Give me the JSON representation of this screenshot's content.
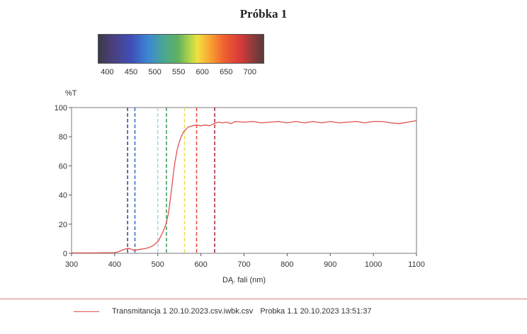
{
  "title": "Próbka 1",
  "spectrum_scale": {
    "ticks": [
      "400",
      "450",
      "500",
      "550",
      "600",
      "650",
      "700"
    ],
    "range": [
      380,
      730
    ]
  },
  "legend": {
    "entry": "Transmitancja 1 20.10.2023.csv.iwbk.csv",
    "sample": "Probka 1.1 20.10.2023 13:51:37",
    "color": "#e05050"
  },
  "chart_data": {
    "type": "line",
    "title": "",
    "xlabel": "DĄ. fali (nm)",
    "ylabel": "%T",
    "xlim": [
      300,
      1100
    ],
    "ylim": [
      0,
      100
    ],
    "x_ticks": [
      "300",
      "400",
      "500",
      "600",
      "700",
      "800",
      "900",
      "1000",
      "1100"
    ],
    "y_ticks": [
      "0",
      "20",
      "40",
      "60",
      "80",
      "100"
    ],
    "grid": false,
    "series": [
      {
        "name": "Transmitancja 1 20.10.2023.csv.iwbk.csv",
        "color": "#e05050",
        "x": [
          300,
          350,
          400,
          410,
          420,
          428,
          435,
          440,
          445,
          450,
          460,
          470,
          480,
          490,
          500,
          505,
          510,
          515,
          520,
          525,
          530,
          535,
          540,
          545,
          550,
          555,
          560,
          570,
          580,
          590,
          600,
          610,
          620,
          630,
          640,
          650,
          660,
          670,
          680,
          700,
          720,
          740,
          760,
          780,
          800,
          820,
          840,
          860,
          880,
          900,
          920,
          940,
          960,
          980,
          1000,
          1020,
          1040,
          1060,
          1080,
          1100
        ],
        "y": [
          0.3,
          0.3,
          0.5,
          1.2,
          2.5,
          3.2,
          3.3,
          2.6,
          2.1,
          2.3,
          2.8,
          3.2,
          4.0,
          5.5,
          8.0,
          10.5,
          13.5,
          17.0,
          21.0,
          28.0,
          39.0,
          52.0,
          63.0,
          71.0,
          76.5,
          80.5,
          83.5,
          86.5,
          87.5,
          88.0,
          87.5,
          88.0,
          87.5,
          89.0,
          90.0,
          89.5,
          90.0,
          89.0,
          90.5,
          90.0,
          90.5,
          89.5,
          90.0,
          90.5,
          89.5,
          90.5,
          89.5,
          90.5,
          89.5,
          90.5,
          89.5,
          90.0,
          90.5,
          89.5,
          90.5,
          90.5,
          89.5,
          89.0,
          90.0,
          91.0
        ]
      }
    ],
    "reference_lines": [
      {
        "x": 430,
        "color": "#3a4fa8"
      },
      {
        "x": 447,
        "color": "#3a6fc8"
      },
      {
        "x": 500,
        "color": "#a8d8e8"
      },
      {
        "x": 520,
        "color": "#40a060"
      },
      {
        "x": 562,
        "color": "#e8e050"
      },
      {
        "x": 590,
        "color": "#e85040"
      },
      {
        "x": 632,
        "color": "#a83040"
      }
    ]
  }
}
